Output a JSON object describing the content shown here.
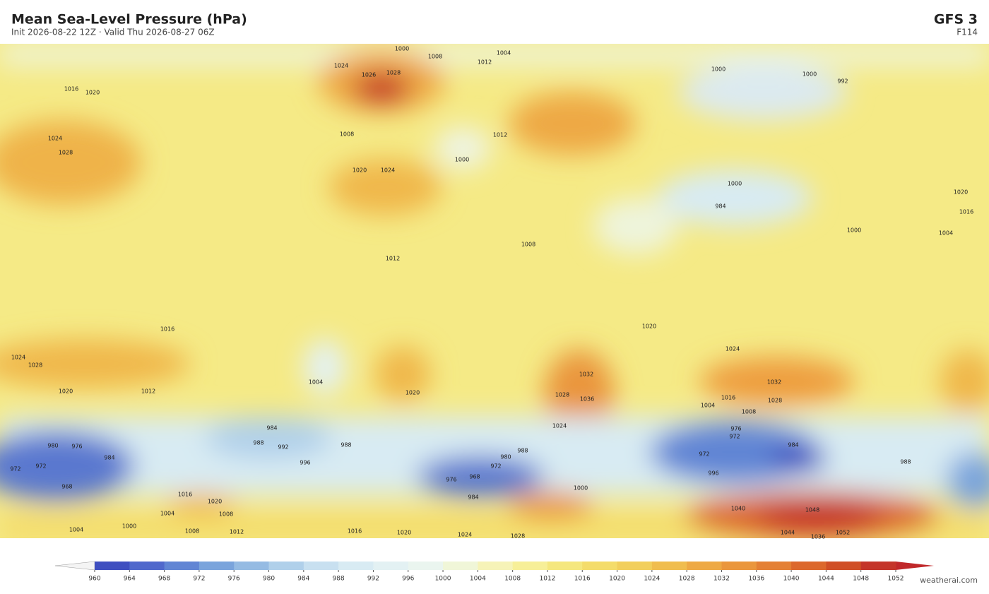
{
  "header": {
    "title": "Mean Sea-Level Pressure  (hPa)",
    "subtitle": "Init 2026-08-22 12Z   ·   Valid Thu 2026-08-27 06Z",
    "model": "GFS  3",
    "forecast": "F114"
  },
  "map": {
    "contour_labels": [
      1000,
      1008,
      1004,
      1012,
      1016,
      1020,
      1024,
      1026,
      1028,
      1028,
      1024,
      1020,
      1024,
      1008,
      1000,
      1012,
      1000,
      1000,
      992,
      1000,
      984,
      1000,
      1004,
      1020,
      1016,
      1008,
      1012,
      1016,
      1020,
      1024,
      1024,
      1028,
      1020,
      1012,
      1004,
      1020,
      1032,
      1036,
      1028,
      1024,
      1032,
      1028,
      1016,
      1008,
      1004,
      984,
      988,
      992,
      988,
      996,
      980,
      976,
      972,
      972,
      968,
      984,
      972,
      980,
      988,
      976,
      968,
      984,
      972,
      976,
      972,
      984,
      988,
      996,
      1000,
      1004,
      1008,
      1016,
      1020,
      1040,
      1048,
      1044,
      1052,
      1004,
      1000,
      1008,
      1012,
      1016,
      1020,
      1024,
      1028,
      1036
    ]
  },
  "colorbar": {
    "ticks": [
      960,
      964,
      968,
      972,
      976,
      980,
      984,
      988,
      992,
      996,
      1000,
      1004,
      1008,
      1012,
      1016,
      1020,
      1024,
      1028,
      1032,
      1036,
      1040,
      1044,
      1048,
      1052
    ],
    "colors": [
      "#3f4fc0",
      "#5068cc",
      "#6185d4",
      "#7aa4dc",
      "#95bbe3",
      "#b0d0ea",
      "#c8e0f0",
      "#d8ebf3",
      "#e3f1f3",
      "#eaf5ef",
      "#f0f6d8",
      "#f6f3b8",
      "#f7ef98",
      "#f5e77e",
      "#f4dc6a",
      "#f2cf5c",
      "#f0bd4e",
      "#eea944",
      "#ea963c",
      "#e48034",
      "#dc682c",
      "#d04f26",
      "#c4352a"
    ],
    "under_color": "#f4f4f4",
    "over_color": "#c0282a"
  },
  "footer": {
    "watermark": "weatherai.com"
  }
}
